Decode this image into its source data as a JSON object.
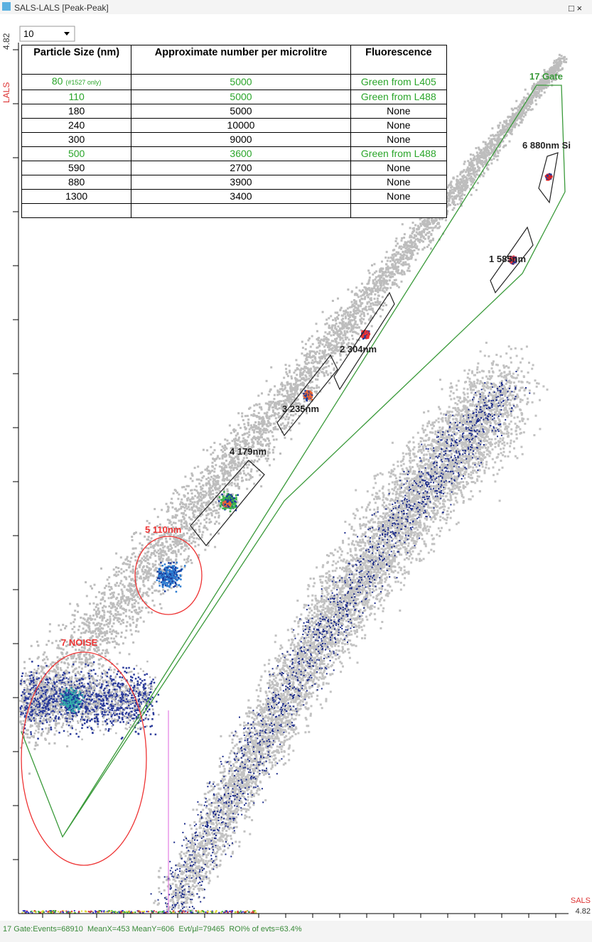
{
  "window": {
    "title": "SALS-LALS [Peak-Peak]",
    "dropdown": "10"
  },
  "axes": {
    "y_label": "LALS",
    "y_max": "4.82",
    "x_label": "SALS",
    "x_max": "4.82"
  },
  "table": {
    "header": [
      "Particle Size (nm)",
      "Approximate number per microlitre",
      "Fluorescence"
    ],
    "rows": [
      {
        "size": "80",
        "note": "(#1527 only)",
        "count": "5000",
        "fluorescence": "Green from L405",
        "green": true
      },
      {
        "size": "110",
        "count": "5000",
        "fluorescence": "Green from L488",
        "green": true
      },
      {
        "size": "180",
        "count": "5000",
        "fluorescence": "None",
        "green": false
      },
      {
        "size": "240",
        "count": "10000",
        "fluorescence": "None",
        "green": false
      },
      {
        "size": "300",
        "count": "9000",
        "fluorescence": "None",
        "green": false
      },
      {
        "size": "500",
        "count": "3600",
        "fluorescence": "Green from L488",
        "green": true
      },
      {
        "size": "590",
        "count": "2700",
        "fluorescence": "None",
        "green": false
      },
      {
        "size": "880",
        "count": "3900",
        "fluorescence": "None",
        "green": false
      },
      {
        "size": "1300",
        "count": "3400",
        "fluorescence": "None",
        "green": false
      }
    ]
  },
  "gates": {
    "main": "17 Gate",
    "g6": "6 880nm Si",
    "g1": "1 585nm",
    "g2": "2 304nm",
    "g3": "3 235nm",
    "g4": "4 179nm",
    "g5": "5 110nm",
    "g7": "7 NOISE"
  },
  "status": "17 Gate:Events=68910  MeanX=453 MeanY=606  Evt/µl=79465  ROI% of evts=63.4%"
}
